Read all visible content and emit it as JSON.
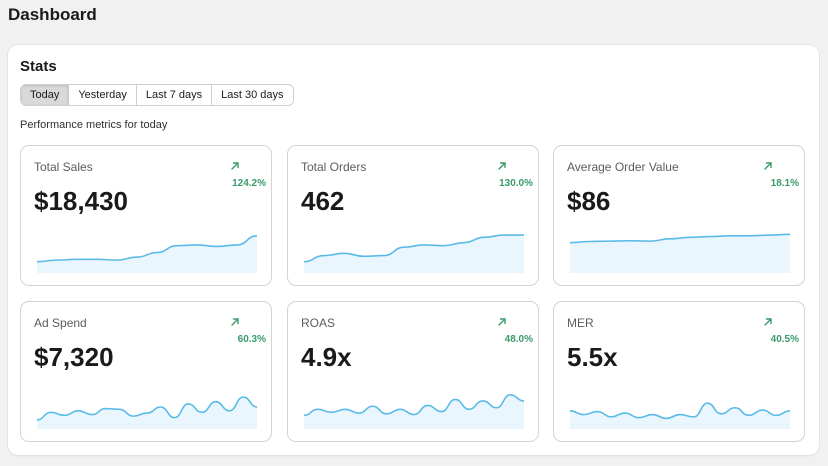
{
  "page": {
    "title": "Dashboard"
  },
  "stats": {
    "title": "Stats",
    "tabs": [
      {
        "label": "Today",
        "active": true
      },
      {
        "label": "Yesterday",
        "active": false
      },
      {
        "label": "Last 7 days",
        "active": false
      },
      {
        "label": "Last 30 days",
        "active": false
      }
    ],
    "subtitle": "Performance metrics for today"
  },
  "colors": {
    "trend_up": "#3a9a6a",
    "spark_line": "#5bbbe8",
    "spark_fill": "#eaf6fd"
  },
  "metrics": [
    {
      "label": "Total Sales",
      "value": "$18,430",
      "change": "124.2%",
      "trend_icon": "arrow-up-right-icon",
      "spark": [
        0.22,
        0.26,
        0.28,
        0.28,
        0.26,
        0.34,
        0.46,
        0.64,
        0.66,
        0.62,
        0.66,
        0.9
      ]
    },
    {
      "label": "Total Orders",
      "value": "462",
      "change": "130.0%",
      "trend_icon": "arrow-up-right-icon",
      "spark": [
        0.22,
        0.38,
        0.44,
        0.36,
        0.38,
        0.6,
        0.66,
        0.64,
        0.72,
        0.86,
        0.92,
        0.92
      ]
    },
    {
      "label": "Average Order Value",
      "value": "$86",
      "change": "18.1%",
      "trend_icon": "arrow-up-right-icon",
      "spark": [
        0.72,
        0.75,
        0.76,
        0.77,
        0.76,
        0.82,
        0.86,
        0.88,
        0.9,
        0.9,
        0.92,
        0.94
      ]
    },
    {
      "label": "Ad Spend",
      "value": "$7,320",
      "change": "60.3%",
      "trend_icon": "arrow-up-right-icon",
      "spark": [
        0.16,
        0.36,
        0.28,
        0.4,
        0.3,
        0.46,
        0.44,
        0.26,
        0.34,
        0.5,
        0.22,
        0.58,
        0.36,
        0.64,
        0.4,
        0.76,
        0.5
      ]
    },
    {
      "label": "ROAS",
      "value": "4.9x",
      "change": "48.0%",
      "trend_icon": "arrow-up-right-icon",
      "spark": [
        0.28,
        0.44,
        0.36,
        0.44,
        0.34,
        0.52,
        0.32,
        0.44,
        0.3,
        0.54,
        0.38,
        0.7,
        0.44,
        0.66,
        0.48,
        0.82,
        0.66
      ]
    },
    {
      "label": "MER",
      "value": "5.5x",
      "change": "40.5%",
      "trend_icon": "arrow-up-right-icon",
      "spark": [
        0.4,
        0.3,
        0.38,
        0.24,
        0.34,
        0.22,
        0.3,
        0.2,
        0.3,
        0.24,
        0.6,
        0.32,
        0.48,
        0.28,
        0.42,
        0.28,
        0.4
      ]
    }
  ]
}
